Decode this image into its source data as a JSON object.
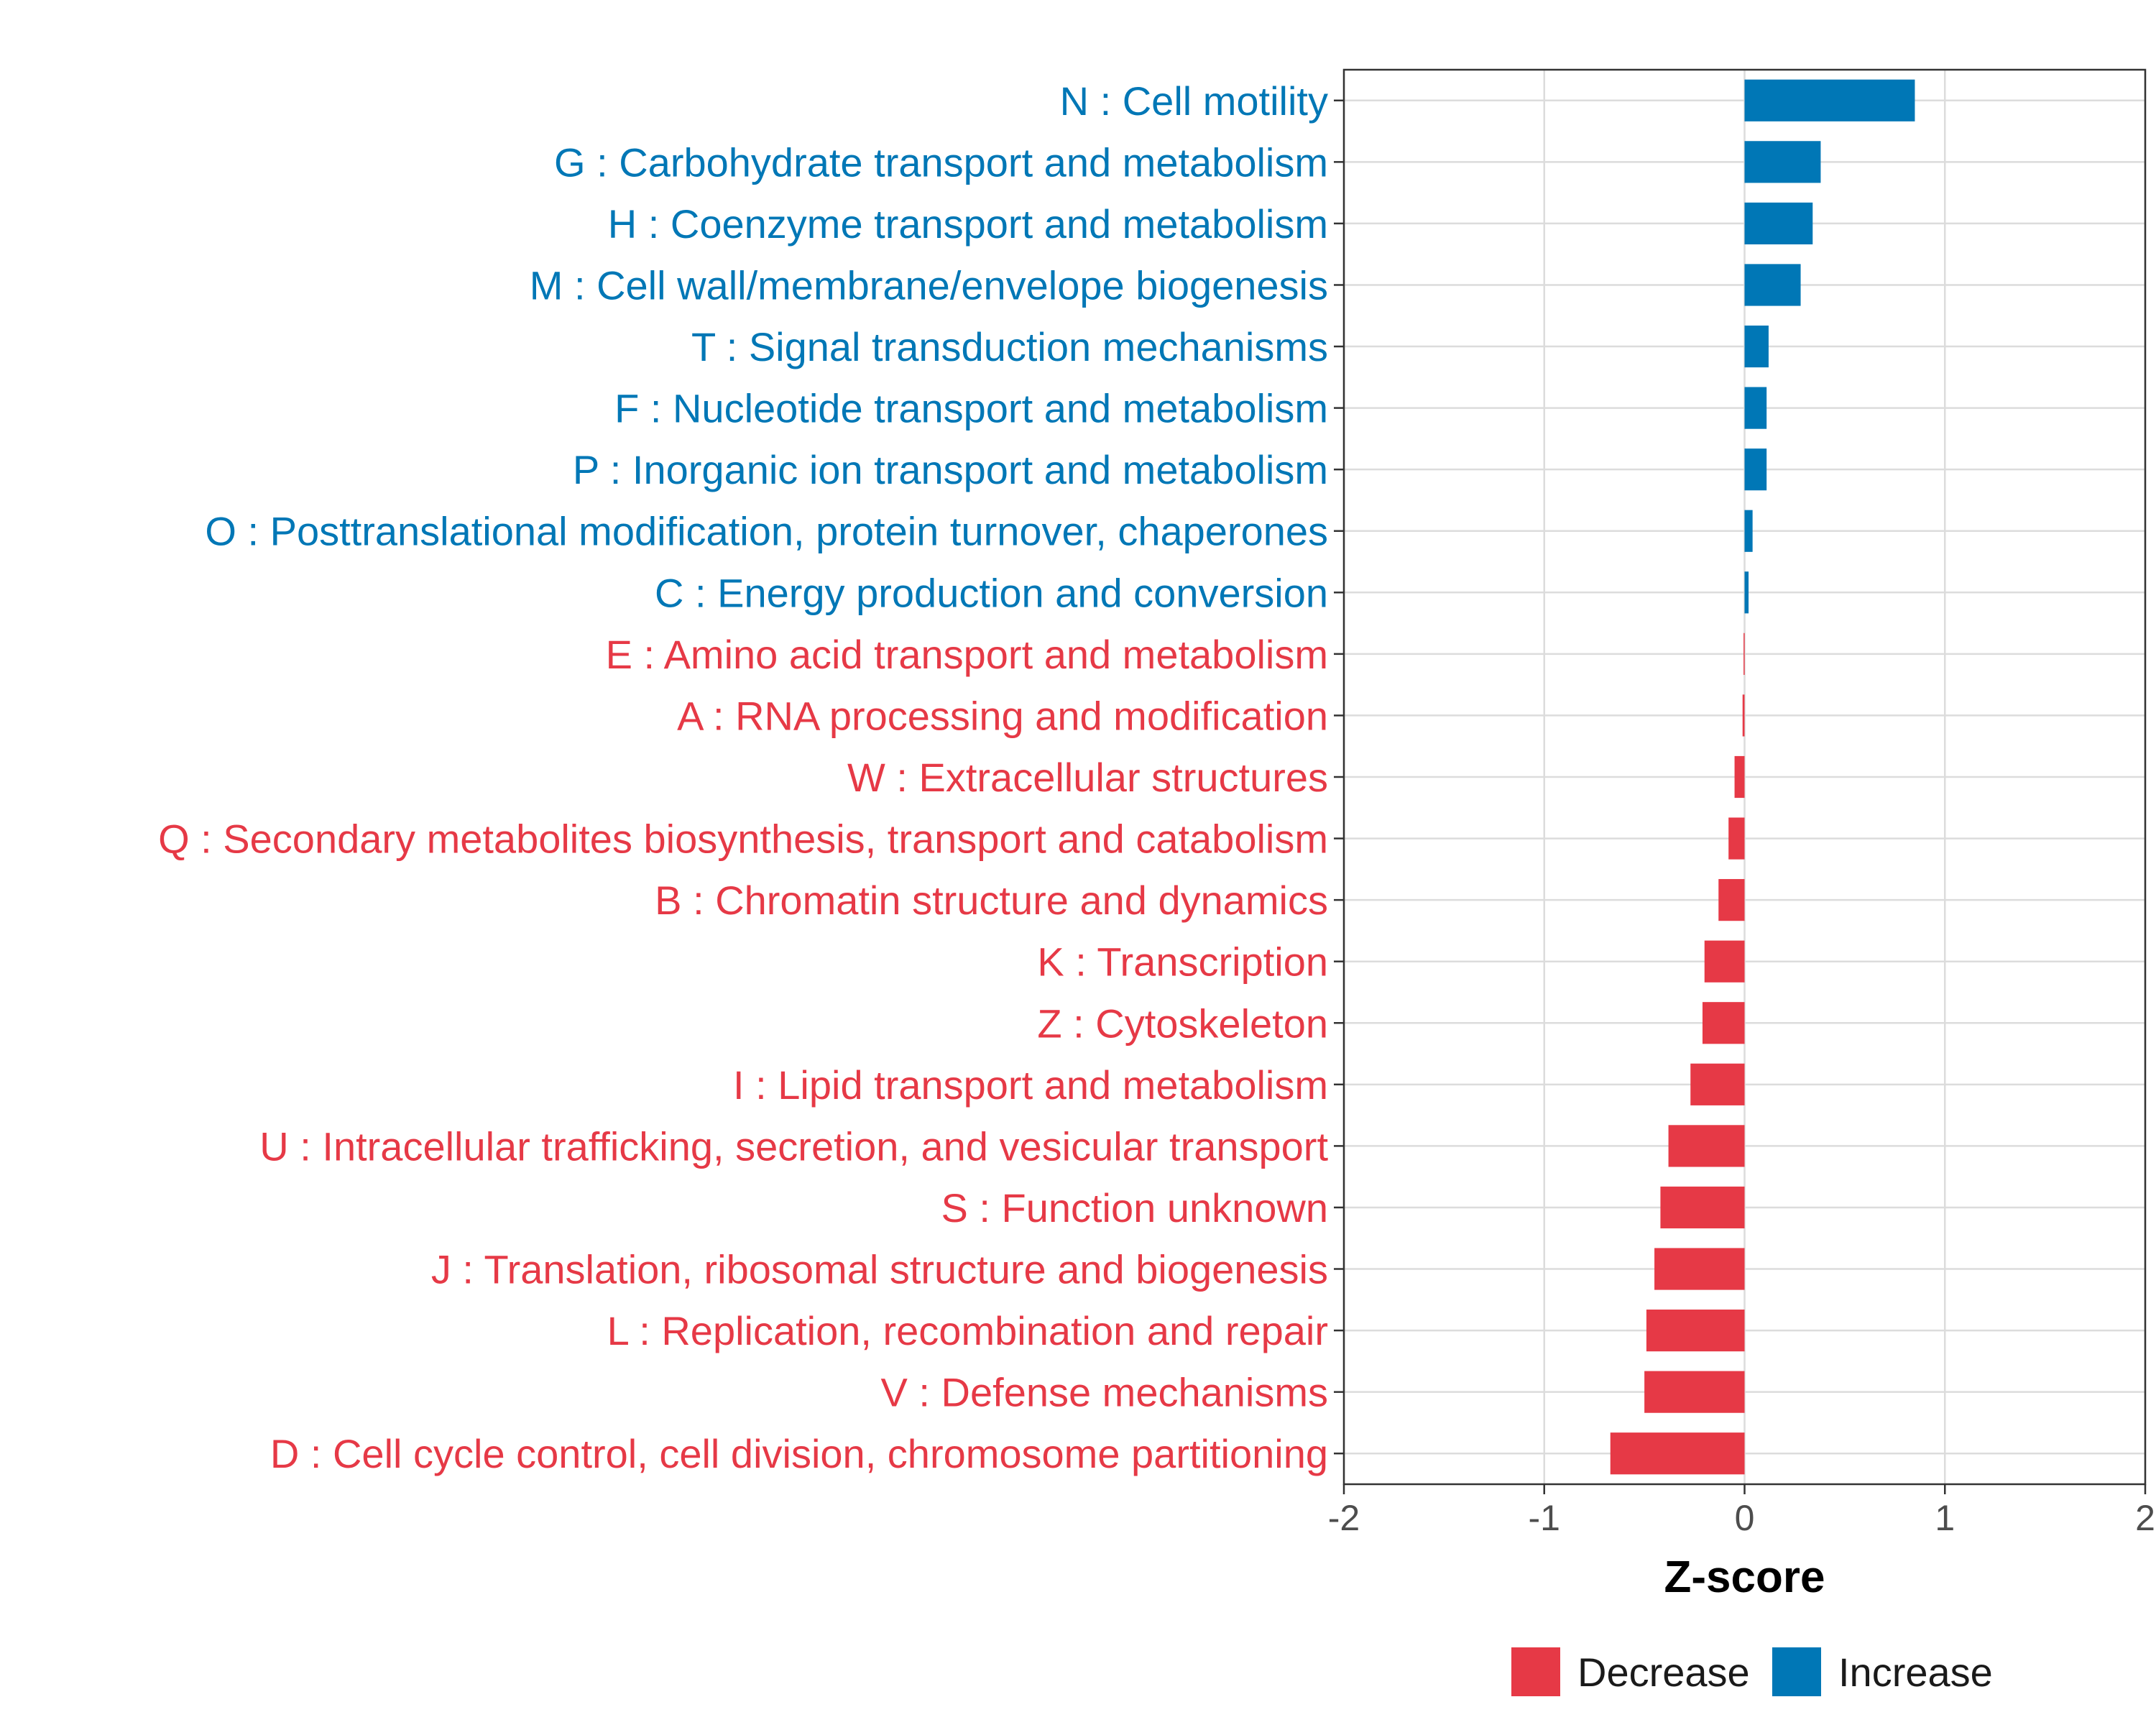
{
  "chart_data": {
    "type": "bar",
    "orientation": "horizontal",
    "xlabel": "Z-score",
    "xlim": [
      -2,
      2
    ],
    "xticks": [
      -2,
      -1,
      0,
      1,
      2
    ],
    "xtick_labels": [
      "-2",
      "-1",
      "0",
      "1",
      "2"
    ],
    "grid": true,
    "colors": {
      "Decrease": "#e63946",
      "Increase": "#0077b6"
    },
    "legend": {
      "position": "bottom",
      "entries": [
        {
          "label": "Decrease",
          "color": "#e63946"
        },
        {
          "label": "Increase",
          "color": "#0077b6"
        }
      ]
    },
    "categories": [
      "N : Cell motility",
      "G : Carbohydrate transport and metabolism",
      "H : Coenzyme transport and metabolism",
      "M : Cell wall/membrane/envelope biogenesis",
      "T : Signal transduction mechanisms",
      "F : Nucleotide transport and metabolism",
      "P : Inorganic ion transport and metabolism",
      "O : Posttranslational modification, protein turnover, chaperones",
      "C : Energy production and conversion",
      "E : Amino acid transport and metabolism",
      "A : RNA processing and modification",
      "W : Extracellular structures",
      "Q : Secondary metabolites biosynthesis, transport and catabolism",
      "B : Chromatin structure and dynamics",
      "K : Transcription",
      "Z : Cytoskeleton",
      "I : Lipid transport and metabolism",
      "U : Intracellular trafficking, secretion, and vesicular transport",
      "S : Function unknown",
      "J : Translation, ribosomal structure and biogenesis",
      "L : Replication, recombination and repair",
      "V : Defense mechanisms",
      "D : Cell cycle control, cell division, chromosome partitioning"
    ],
    "values": [
      0.85,
      0.38,
      0.34,
      0.28,
      0.12,
      0.11,
      0.11,
      0.04,
      0.02,
      -0.005,
      -0.01,
      -0.05,
      -0.08,
      -0.13,
      -0.2,
      -0.21,
      -0.27,
      -0.38,
      -0.42,
      -0.45,
      -0.49,
      -0.5,
      -0.67
    ],
    "directions": [
      "Increase",
      "Increase",
      "Increase",
      "Increase",
      "Increase",
      "Increase",
      "Increase",
      "Increase",
      "Increase",
      "Decrease",
      "Decrease",
      "Decrease",
      "Decrease",
      "Decrease",
      "Decrease",
      "Decrease",
      "Decrease",
      "Decrease",
      "Decrease",
      "Decrease",
      "Decrease",
      "Decrease",
      "Decrease"
    ]
  }
}
